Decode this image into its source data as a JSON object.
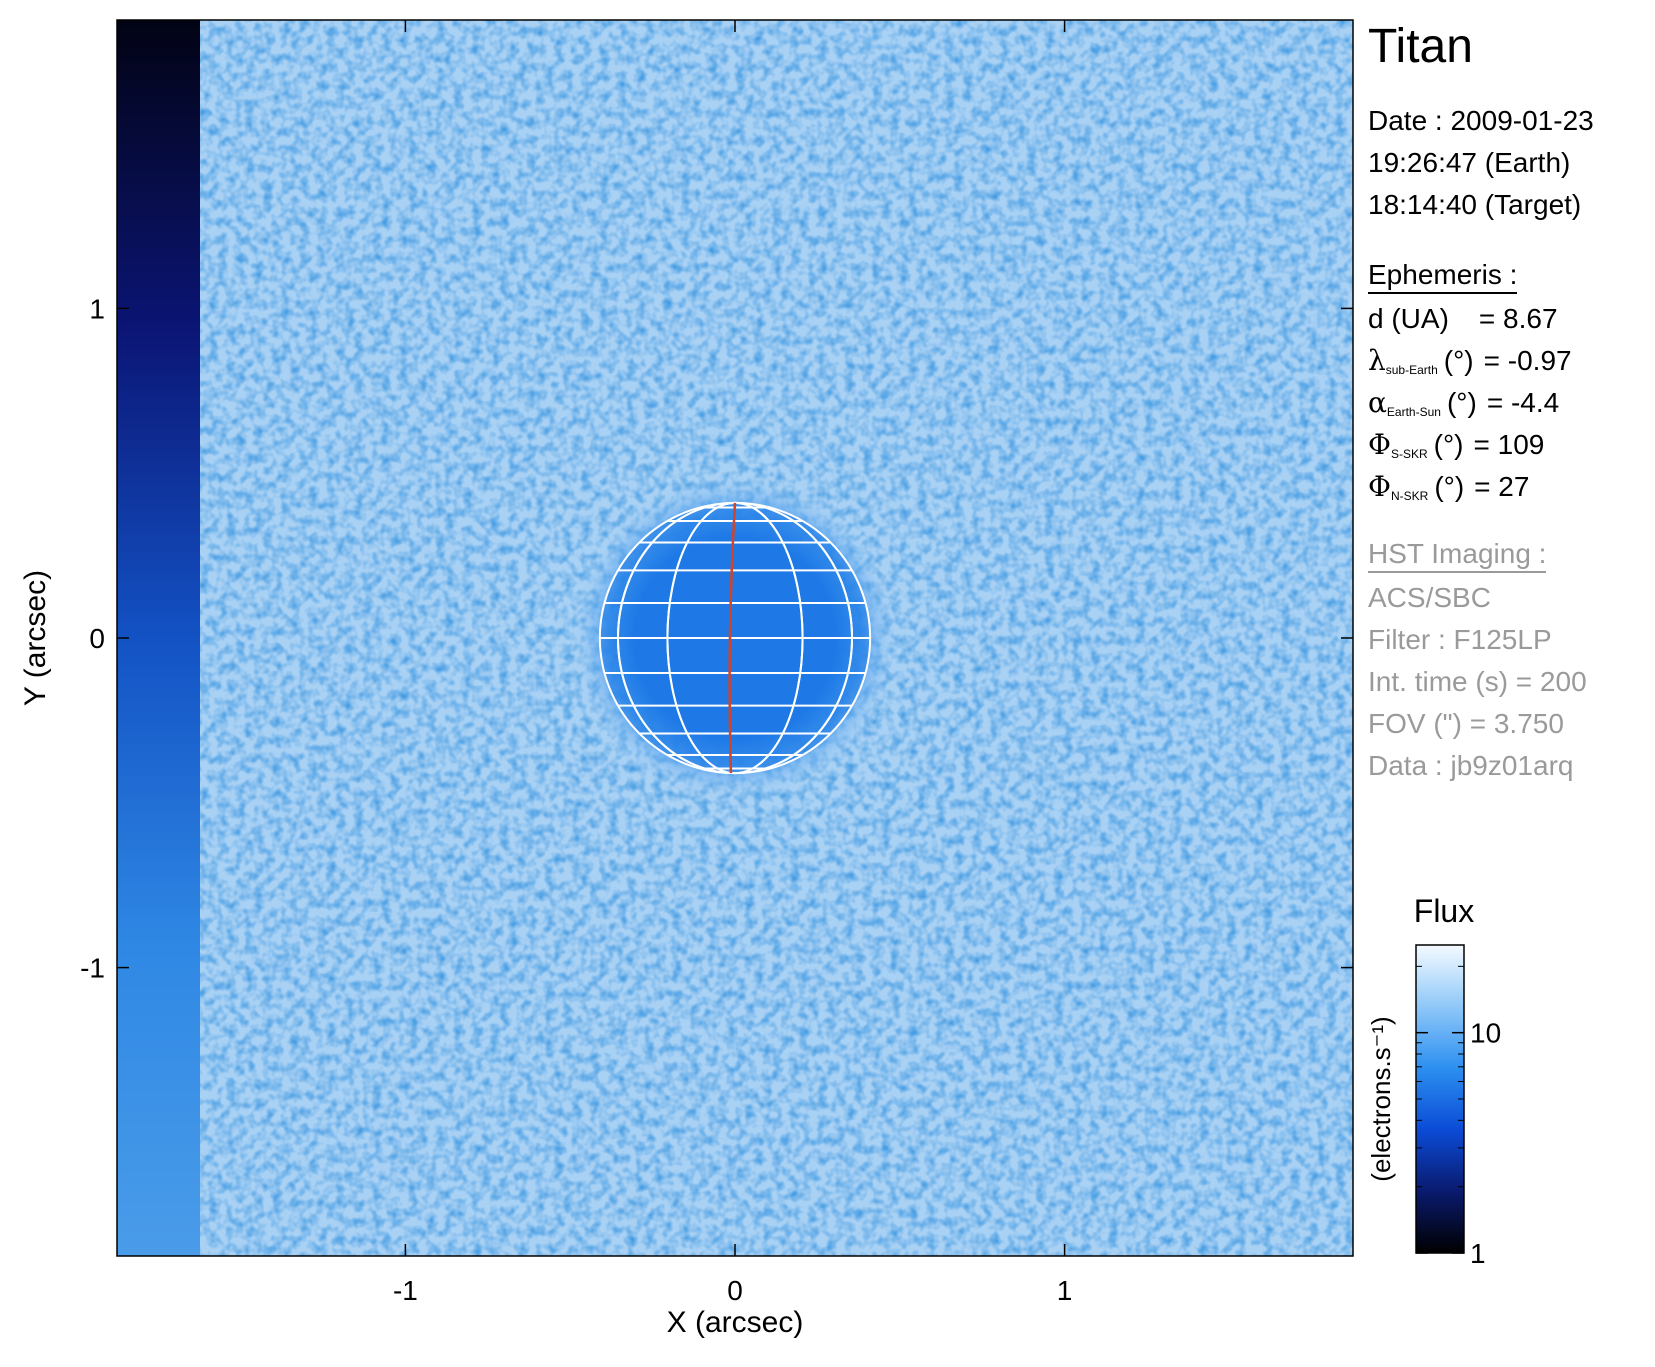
{
  "target": "Titan",
  "date": {
    "line1": "Date : 2009-01-23",
    "line2": "19:26:47 (Earth)",
    "line3": "18:14:40 (Target)"
  },
  "ephemeris": {
    "header": "Ephemeris :",
    "items": [
      {
        "label": "d (UA)",
        "symbol": "",
        "sub": "",
        "unit": "",
        "value": "= 8.67"
      },
      {
        "label": "",
        "symbol": "λ",
        "sub": "sub-Earth",
        "unit": "(°)",
        "value": "= -0.97"
      },
      {
        "label": "",
        "symbol": "α",
        "sub": "Earth-Sun",
        "unit": "(°)",
        "value": "= -4.4"
      },
      {
        "label": "",
        "symbol": "Φ",
        "sub": "S-SKR",
        "unit": "(°)",
        "value": "= 109"
      },
      {
        "label": "",
        "symbol": "Φ",
        "sub": "N-SKR",
        "unit": "(°)",
        "value": "= 27"
      }
    ]
  },
  "imaging": {
    "header": "HST Imaging :",
    "lines": [
      "ACS/SBC",
      "Filter : F125LP",
      "Int. time (s) = 200",
      "FOV (\") = 3.750",
      "Data : jb9z01arq"
    ]
  },
  "colorbar": {
    "title": "Flux",
    "label": "(electrons.s⁻¹)",
    "ticks": [
      {
        "value": 1,
        "label": "1"
      },
      {
        "value": 10,
        "label": "10"
      }
    ],
    "range": [
      1,
      25
    ],
    "scale": "log",
    "colors": [
      "#000000",
      "#0a1a6e",
      "#0b4bd6",
      "#2c8ff0",
      "#8fc8f8",
      "#f4faff"
    ]
  },
  "chart_data": {
    "type": "heatmap",
    "xlabel": "X (arcsec)",
    "ylabel": "Y (arcsec)",
    "xlim": [
      -1.875,
      1.875
    ],
    "ylim": [
      -1.875,
      1.875
    ],
    "xticks": [
      {
        "value": -1,
        "label": "-1"
      },
      {
        "value": 0,
        "label": "0"
      },
      {
        "value": 1,
        "label": "1"
      }
    ],
    "yticks": [
      {
        "value": 1,
        "label": "1"
      },
      {
        "value": 0,
        "label": "0"
      },
      {
        "value": -1,
        "label": "-1"
      }
    ],
    "planet": {
      "center": [
        0,
        0
      ],
      "radius_arcsec": 0.41
    },
    "background_color": "#a9d1f4",
    "disk_color": "#1e7ae6",
    "grid_color": "#ffffff",
    "central_meridian_color": "#d0442a"
  }
}
